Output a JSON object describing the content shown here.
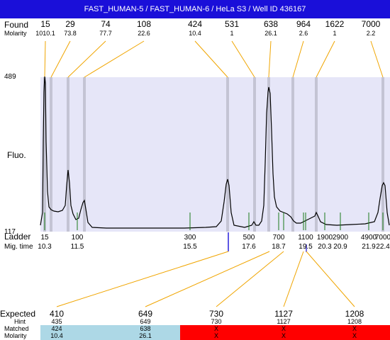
{
  "title": "FAST_HUMAN-5 / FAST_HUMAN-6 / HeLa S3 / Well ID 436167",
  "labels": {
    "found": "Found",
    "molarity": "Molarity",
    "fluo": "Fluo.",
    "ladder": "Ladder",
    "mig_time": "Mig. time",
    "expected": "Expected",
    "hint": "Hint",
    "matched": "Matched",
    "molarity_bottom": "Molarity"
  },
  "y_axis": {
    "top_label": "489",
    "bottom_label": "117"
  },
  "found": [
    {
      "size": "15",
      "molarity": "1010.1"
    },
    {
      "size": "29",
      "molarity": "73.8"
    },
    {
      "size": "74",
      "molarity": "77.7"
    },
    {
      "size": "108",
      "molarity": "22.6"
    },
    {
      "size": "424",
      "molarity": "10.4"
    },
    {
      "size": "531",
      "molarity": "1"
    },
    {
      "size": "638",
      "molarity": "26.1"
    },
    {
      "size": "964",
      "molarity": "2.6"
    },
    {
      "size": "1622",
      "molarity": "1"
    },
    {
      "size": "7000",
      "molarity": "2.2"
    }
  ],
  "ladder": [
    {
      "size": "15",
      "time": "10.3"
    },
    {
      "size": "100",
      "time": "11.5"
    },
    {
      "size": "300",
      "time": "15.5"
    },
    {
      "size": "500",
      "time": "17.6"
    },
    {
      "size": "700",
      "time": "18.7"
    },
    {
      "size": "1100",
      "time": "19.5"
    },
    {
      "size": "1900",
      "time": "20.3"
    },
    {
      "size": "2900",
      "time": "20.9"
    },
    {
      "size": "4900",
      "time": "21.9"
    },
    {
      "size": "7000",
      "time": "22.4"
    }
  ],
  "expected": [
    {
      "value": "410",
      "hint": "435",
      "matched": "424",
      "molarity": "10.4",
      "status": "matched"
    },
    {
      "value": "649",
      "hint": "649",
      "matched": "638",
      "molarity": "26.1",
      "status": "matched"
    },
    {
      "value": "730",
      "hint": "730",
      "matched": "X",
      "molarity": "X",
      "status": "unmatched"
    },
    {
      "value": "1127",
      "hint": "1127",
      "matched": "X",
      "molarity": "X",
      "status": "unmatched"
    },
    {
      "value": "1208",
      "hint": "1208",
      "matched": "X",
      "molarity": "X",
      "status": "unmatched"
    }
  ],
  "colors": {
    "title_bg": "#1a0fd9",
    "plot_bg": "#e6e6f8",
    "peak_band": "#c4c4d4",
    "connector": "#f0a500",
    "ladder_tick": "#1a7a1a",
    "marker": "#1a0fd9",
    "matched_bg": "#add8e6",
    "unmatched_bg": "#ff0000"
  }
}
